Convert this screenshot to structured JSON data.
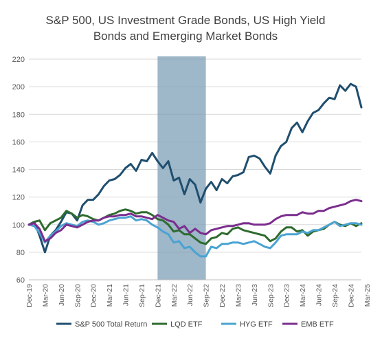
{
  "chart_data": {
    "type": "line",
    "title_line1": "S&P 500, US Investment Grade Bonds, US High Yield",
    "title_line2": "Bonds and Emerging Market Bonds",
    "xlabel": "",
    "ylabel": "",
    "ylim": [
      60,
      220
    ],
    "yticks": [
      60,
      80,
      100,
      120,
      140,
      160,
      180,
      200,
      220
    ],
    "x_tick_labels": [
      "Dec-19",
      "Mar-20",
      "Jun-20",
      "Sep-20",
      "Dec-20",
      "Mar-21",
      "Jun-21",
      "Sep-21",
      "Dec-21",
      "Mar-22",
      "Jun-22",
      "Sep-22",
      "Dec-22",
      "Mar-23",
      "Jun-23",
      "Sep-23",
      "Dec-23",
      "Mar-24",
      "Jun-24",
      "Sep-24",
      "Dec-24",
      "Mar-25"
    ],
    "grid": "horizontal",
    "legend_position": "bottom",
    "shaded_region": {
      "start_month": 24,
      "end_month": 33,
      "color": "#7d9fb7"
    },
    "series": [
      {
        "name": "S&P 500 Total Return",
        "color": "#1f4e6e",
        "values": [
          100,
          102,
          92,
          80,
          92,
          96,
          102,
          109,
          108,
          103,
          114,
          118,
          118,
          122,
          128,
          132,
          133,
          136,
          141,
          144,
          139,
          147,
          146,
          152,
          146,
          141,
          146,
          132,
          134,
          122,
          133,
          129,
          116,
          126,
          131,
          125,
          133,
          130,
          135,
          136,
          138,
          149,
          150,
          148,
          142,
          137,
          150,
          157,
          160,
          170,
          174,
          167,
          175,
          181,
          183,
          188,
          192,
          191,
          201,
          197,
          202,
          200,
          185
        ]
      },
      {
        "name": "LQD ETF",
        "color": "#2e6b2e",
        "values": [
          100,
          102,
          103,
          96,
          101,
          103,
          105,
          110,
          108,
          105,
          107,
          106,
          104,
          103,
          105,
          107,
          108,
          110,
          111,
          110,
          108,
          109,
          109,
          107,
          104,
          103,
          100,
          95,
          96,
          93,
          93,
          90,
          87,
          86,
          90,
          91,
          94,
          93,
          97,
          98,
          96,
          95,
          94,
          93,
          92,
          88,
          90,
          95,
          98,
          98,
          95,
          96,
          92,
          95,
          96,
          97,
          100,
          102,
          100,
          99,
          101,
          99,
          101
        ]
      },
      {
        "name": "HYG ETF",
        "color": "#4aa3d2",
        "values": [
          100,
          99,
          94,
          87,
          92,
          95,
          99,
          101,
          100,
          99,
          102,
          103,
          102,
          100,
          101,
          103,
          104,
          105,
          105,
          106,
          103,
          104,
          103,
          100,
          98,
          95,
          93,
          87,
          88,
          83,
          84,
          80,
          77,
          77,
          84,
          83,
          86,
          86,
          87,
          87,
          86,
          87,
          88,
          86,
          84,
          83,
          87,
          92,
          93,
          93,
          93,
          95,
          94,
          96,
          96,
          98,
          100,
          102,
          99,
          100,
          101,
          101,
          100
        ]
      },
      {
        "name": "EMB ETF",
        "color": "#7b2d8e",
        "values": [
          100,
          101,
          97,
          88,
          90,
          94,
          96,
          100,
          99,
          98,
          100,
          102,
          103,
          103,
          105,
          106,
          106,
          107,
          107,
          108,
          106,
          106,
          105,
          104,
          107,
          105,
          103,
          102,
          97,
          99,
          94,
          97,
          94,
          93,
          96,
          97,
          98,
          99,
          99,
          100,
          101,
          101,
          100,
          100,
          100,
          101,
          104,
          106,
          107,
          107,
          107,
          109,
          108,
          108,
          110,
          110,
          112,
          113,
          114,
          115,
          117,
          118,
          117
        ]
      }
    ]
  }
}
